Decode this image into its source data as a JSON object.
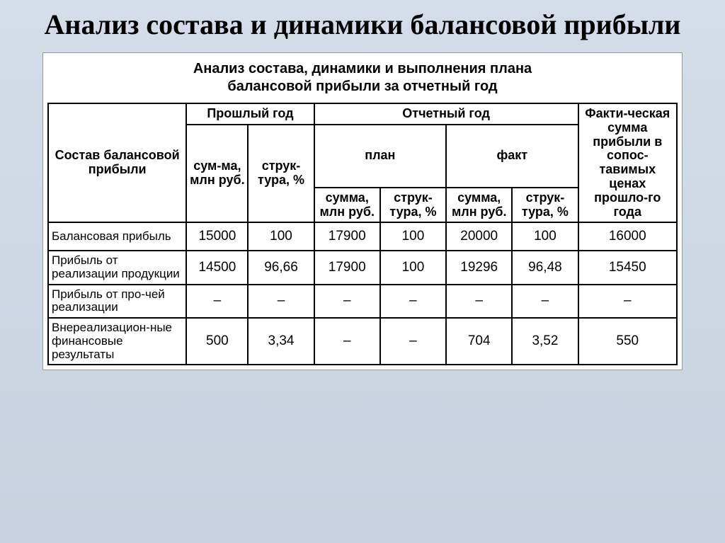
{
  "title": "Анализ состава и динамики балансовой прибыли",
  "table": {
    "caption_l1": "Анализ состава, динамики и выполнения плана",
    "caption_l2": "балансовой прибыли за отчетный год",
    "header": {
      "col0": "Состав балансовой прибыли",
      "group_prev": "Прошлый год",
      "group_report": "Отчетный год",
      "col7": "Факти-ческая сумма прибыли в сопос-тавимых ценах прошло-го года",
      "sub_plan": "план",
      "sub_fact": "факт",
      "sum_mln": "сум-ма, млн руб.",
      "struct": "струк-тура, %",
      "summa_mln": "сумма, млн руб."
    },
    "rows": [
      {
        "label": "Балансовая прибыль",
        "c1": "15000",
        "c2": "100",
        "c3": "17900",
        "c4": "100",
        "c5": "20000",
        "c6": "100",
        "c7": "16000"
      },
      {
        "label": "Прибыль от реализации продукции",
        "c1": "14500",
        "c2": "96,66",
        "c3": "17900",
        "c4": "100",
        "c5": "19296",
        "c6": "96,48",
        "c7": "15450"
      },
      {
        "label": "Прибыль от про-чей реализации",
        "c1": "–",
        "c2": "–",
        "c3": "–",
        "c4": "–",
        "c5": "–",
        "c6": "–",
        "c7": "–"
      },
      {
        "label": "Внереализацион-ные финансовые результаты",
        "c1": "500",
        "c2": "3,34",
        "c3": "–",
        "c4": "–",
        "c5": "704",
        "c6": "3,52",
        "c7": "550"
      }
    ]
  },
  "style": {
    "bg_gradient_top": "#d4dce8",
    "bg_gradient_bottom": "#c8d2e0",
    "table_bg": "#ffffff",
    "border_color": "#000000",
    "title_fontsize": 40,
    "caption_fontsize": 20,
    "header_fontsize": 18,
    "cell_fontsize": 19,
    "rowlabel_fontsize": 17,
    "table_border_width": 2
  }
}
